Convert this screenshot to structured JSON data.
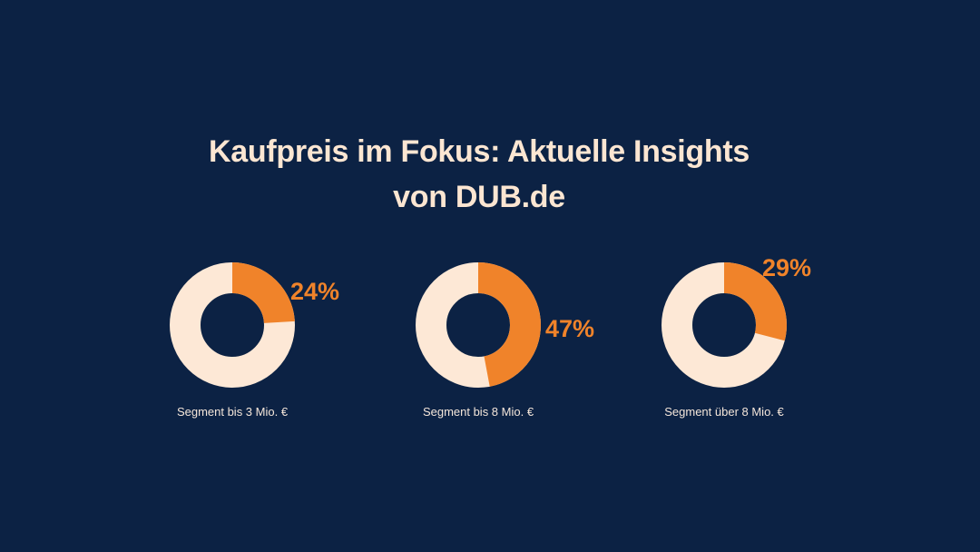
{
  "title": {
    "line1": "Kaufpreis im Fokus: Aktuelle Insights",
    "line2": "von DUB.de"
  },
  "colors": {
    "background": "#0c2244",
    "accent": "#f0832a",
    "ring_base": "#fde8d6",
    "text_light": "#fce6d2"
  },
  "chart_data": [
    {
      "type": "pie",
      "variant": "donut",
      "values": [
        24,
        76
      ],
      "highlight_label": "24%",
      "caption": "Segment bis 3 Mio. €"
    },
    {
      "type": "pie",
      "variant": "donut",
      "values": [
        47,
        53
      ],
      "highlight_label": "47%",
      "caption": "Segment bis 8 Mio. €"
    },
    {
      "type": "pie",
      "variant": "donut",
      "values": [
        29,
        71
      ],
      "highlight_label": "29%",
      "caption": "Segment über 8 Mio. €"
    }
  ]
}
